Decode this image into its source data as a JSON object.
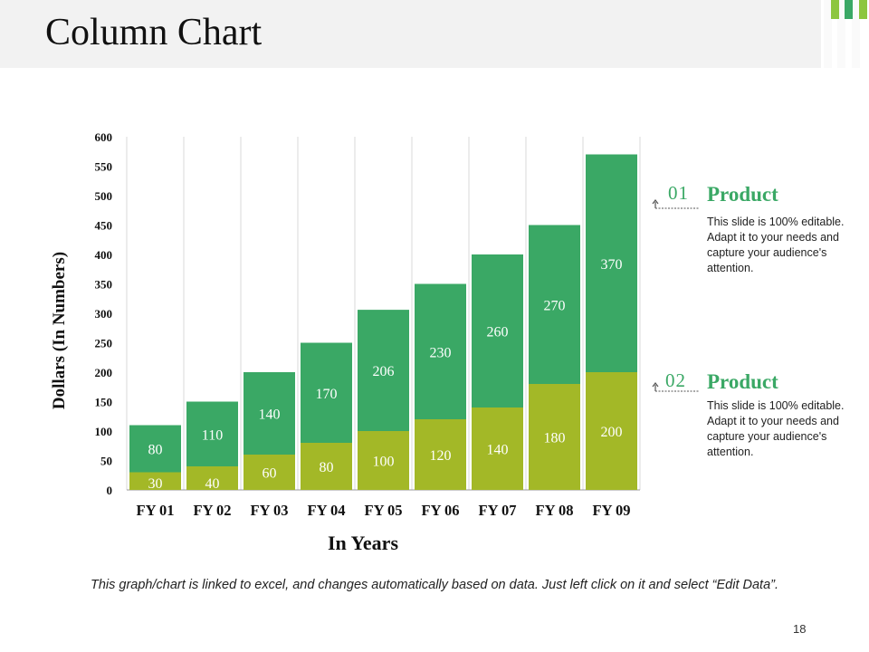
{
  "slide": {
    "title": "Column Chart",
    "footnote": "This graph/chart is linked to excel, and changes automatically based on data. Just left click on it and select “Edit Data”.",
    "page_number": "18"
  },
  "colors": {
    "series_top": "#3aa865",
    "series_bottom": "#a3b827",
    "accent_green": "#3aa865",
    "accent_lime": "#8dc63f",
    "grid": "#d9d9d9"
  },
  "legend": [
    {
      "number": "01",
      "title": "Product",
      "description": "This slide is 100% editable. Adapt it to your needs and capture your audience's attention."
    },
    {
      "number": "02",
      "title": "Product",
      "description": "This slide is 100% editable. Adapt it to your needs and capture your audience's attention."
    }
  ],
  "chart_data": {
    "type": "bar",
    "stacked": true,
    "title": "",
    "categories": [
      "FY 01",
      "FY 02",
      "FY 03",
      "FY 04",
      "FY 05",
      "FY 06",
      "FY 07",
      "FY 08",
      "FY 09"
    ],
    "series": [
      {
        "name": "Product 02",
        "values": [
          30,
          40,
          60,
          80,
          100,
          120,
          140,
          180,
          200
        ]
      },
      {
        "name": "Product 01",
        "values": [
          80,
          110,
          140,
          170,
          206,
          230,
          260,
          270,
          370
        ]
      }
    ],
    "xlabel": "In Years",
    "ylabel": "Dollars (In Numbers)",
    "ylim": [
      0,
      600
    ],
    "yticks": [
      0,
      50,
      100,
      150,
      200,
      250,
      300,
      350,
      400,
      450,
      500,
      550,
      600
    ],
    "ytick_labels": [
      "0",
      "50",
      "100",
      "150",
      "200",
      "250",
      "300",
      "350",
      "400",
      "450",
      "500",
      "550",
      "600"
    ],
    "grid": "vertical",
    "data_labels": true
  }
}
